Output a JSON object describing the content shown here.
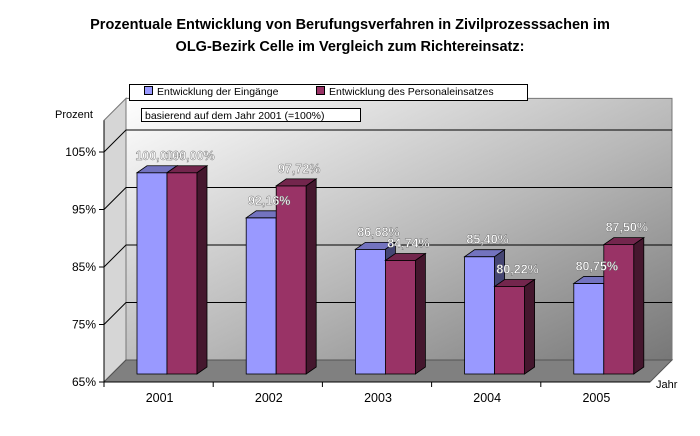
{
  "title_line1": "Prozentuale Entwicklung von Berufungsverfahren in Zivilprozesssachen im",
  "title_line2": "OLG-Bezirk Celle im Vergleich zum Richtereinsatz:",
  "note": "basierend auf dem Jahr 2001 (=100%)",
  "colors": {
    "series1": "#9999ff",
    "series2": "#993366"
  },
  "chart_data": {
    "type": "bar",
    "categories": [
      "2001",
      "2002",
      "2003",
      "2004",
      "2005"
    ],
    "series": [
      {
        "name": "Entwicklung der Eingänge",
        "values": [
          100.0,
          92.16,
          86.68,
          85.4,
          80.75
        ],
        "labels": [
          "100,00%",
          "92,16%",
          "86,68%",
          "85,40%",
          "80,75%"
        ]
      },
      {
        "name": "Entwicklung des Personaleinsatzes",
        "values": [
          100.0,
          97.72,
          84.74,
          80.22,
          87.5
        ],
        "labels": [
          "100,00%",
          "97,72%",
          "84,74%",
          "80,22%",
          "87,50%"
        ]
      }
    ],
    "ylabel": "Prozent",
    "xlabel": "Jahr",
    "ylim": [
      65,
      105
    ],
    "yticks": [
      65,
      75,
      85,
      95,
      105
    ],
    "ytick_labels": [
      "65%",
      "75%",
      "85%",
      "95%",
      "105%"
    ],
    "grid": true,
    "legend_position": "top"
  }
}
